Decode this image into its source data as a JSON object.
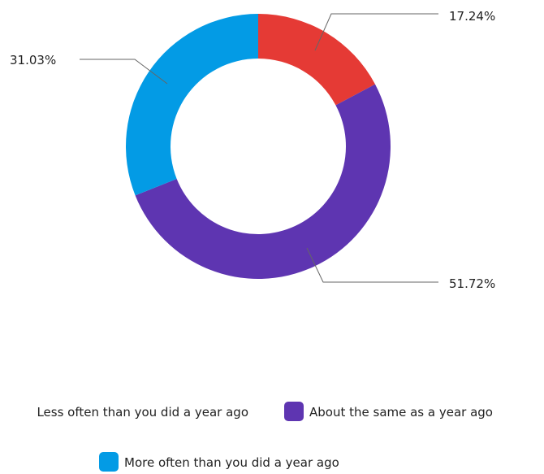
{
  "chart_data": {
    "type": "pie",
    "donut": true,
    "title": "",
    "categories": [
      "Less often than you did a year ago",
      "About the same as a year ago",
      "More often than you did a year ago"
    ],
    "values": [
      17.24,
      51.72,
      31.03
    ],
    "labels": [
      "17.24%",
      "51.72%",
      "31.03%"
    ],
    "colors": [
      "#e53a35",
      "#5e35b1",
      "#039be5"
    ],
    "legend": {
      "placement": "bottom",
      "items": [
        {
          "label": "Less often than you did a year ago",
          "color": "#e53a35"
        },
        {
          "label": "About the same as a year ago",
          "color": "#5e35b1"
        },
        {
          "label": "More often than you did a year ago",
          "color": "#039be5"
        }
      ]
    }
  }
}
